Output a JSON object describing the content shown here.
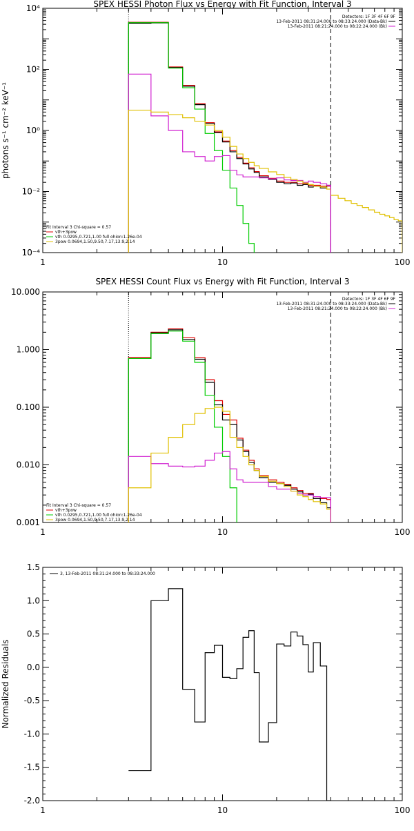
{
  "chart_data": [
    {
      "type": "line",
      "title": "SPEX HESSI Photon Flux vs Energy with Fit Function, Interval 3",
      "xlabel": "",
      "ylabel": "photons s⁻¹ cm⁻² keV⁻¹",
      "x_scale": "log",
      "y_scale": "log",
      "xlim": [
        1,
        100
      ],
      "ylim": [
        0.0001,
        10000
      ],
      "x_ticks": [
        {
          "value": 1,
          "label": "1"
        },
        {
          "value": 10,
          "label": "10"
        },
        {
          "value": 100,
          "label": "100"
        }
      ],
      "y_ticks": [
        {
          "value": 0.0001,
          "label": "10⁻⁴"
        },
        {
          "value": 0.01,
          "label": "10⁻²"
        },
        {
          "value": 1,
          "label": "10⁰"
        },
        {
          "value": 100,
          "label": "10²"
        },
        {
          "value": 10000,
          "label": "10⁴"
        }
      ],
      "legend_top_right": [
        {
          "text": "Detectors: 1F 3F 4F 6F 9F"
        },
        {
          "text": "13-Feb-2011 08:31:24.000 to 08:33:24.000 (Data-Bk)",
          "color": "#000000"
        },
        {
          "text": "13-Feb-2011 08:21:24.000 to 08:22:24.000 (Bk)",
          "color": "#d020d0"
        }
      ],
      "legend_bottom_left": [
        {
          "text": "Fit Interval  3    Chi-square = 0.57"
        },
        {
          "text": "vth+3pow",
          "color": "#e00000"
        },
        {
          "text": "vth 0.0295,0.721,1.00  full ohion:1.26e-04",
          "color": "#00cc00"
        },
        {
          "text": "3pow 0.0694,1.50,9.50,7.17,13.9,2.14",
          "color": "#e0c000"
        }
      ],
      "vlines": [
        {
          "x": 3.0,
          "style": "dotted",
          "color": "#000000"
        },
        {
          "x": 40.0,
          "style": "dashed",
          "color": "#000000"
        }
      ],
      "series": [
        {
          "color": "#e00000",
          "edges": [
            3,
            4,
            5,
            6,
            7,
            8,
            9,
            10,
            11,
            12,
            13,
            14,
            15,
            16,
            18,
            20,
            22,
            24,
            26,
            28,
            30,
            32,
            35,
            38,
            40
          ],
          "values": [
            3500,
            3500,
            120,
            30,
            7.5,
            1.8,
            0.9,
            0.45,
            0.22,
            0.13,
            0.085,
            0.06,
            0.045,
            0.033,
            0.027,
            0.022,
            0.02,
            0.02,
            0.018,
            0.018,
            0.016,
            0.016,
            0.015,
            0.015
          ]
        },
        {
          "color": "#000000",
          "edges": [
            3,
            4,
            5,
            6,
            7,
            8,
            9,
            10,
            11,
            12,
            13,
            14,
            15,
            16,
            18,
            20,
            22,
            24,
            26,
            28,
            30,
            32,
            35,
            38,
            40
          ],
          "values": [
            3200,
            3300,
            115,
            28,
            7,
            1.7,
            0.85,
            0.42,
            0.2,
            0.12,
            0.08,
            0.055,
            0.042,
            0.03,
            0.025,
            0.02,
            0.018,
            0.019,
            0.016,
            0.017,
            0.014,
            0.015,
            0.013,
            0.016
          ]
        },
        {
          "color": "#00cc00",
          "edges": [
            3,
            4,
            5,
            6,
            7,
            8,
            9,
            10,
            11,
            12,
            13,
            14,
            15
          ],
          "values": [
            3400,
            3400,
            110,
            25,
            5,
            0.8,
            0.22,
            0.05,
            0.013,
            0.0035,
            0.0009,
            0.0002
          ]
        },
        {
          "color": "#d020d0",
          "edges": [
            3,
            4,
            5,
            6,
            7,
            8,
            9,
            10,
            11,
            12,
            13,
            14,
            15,
            16,
            18,
            20,
            22,
            24,
            26,
            28,
            30,
            32,
            35,
            38,
            40
          ],
          "values": [
            70,
            3,
            1.0,
            0.2,
            0.14,
            0.1,
            0.14,
            0.15,
            0.05,
            0.035,
            0.03,
            0.03,
            0.03,
            0.028,
            0.026,
            0.028,
            0.024,
            0.023,
            0.023,
            0.02,
            0.022,
            0.02,
            0.018,
            0.016
          ]
        },
        {
          "color": "#e0c000",
          "edges": [
            3,
            4,
            5,
            6,
            7,
            8,
            9,
            10,
            11,
            12,
            13,
            14,
            15,
            16,
            18,
            20,
            22,
            24,
            26,
            28,
            30,
            32,
            35,
            38,
            40,
            44,
            48,
            52,
            56,
            60,
            65,
            70,
            75,
            80,
            85,
            90,
            95,
            100
          ],
          "values": [
            4.6,
            4.0,
            3.3,
            2.6,
            2.0,
            1.5,
            1.0,
            0.6,
            0.3,
            0.17,
            0.12,
            0.09,
            0.07,
            0.057,
            0.044,
            0.036,
            0.029,
            0.025,
            0.022,
            0.019,
            0.017,
            0.015,
            0.014,
            0.012,
            0.0075,
            0.006,
            0.005,
            0.0041,
            0.0035,
            0.003,
            0.0025,
            0.0021,
            0.0018,
            0.0016,
            0.0014,
            0.0012,
            0.0011
          ]
        },
        {
          "color": "#d020d0",
          "segments": [
            [
              40,
              0.016,
              40,
              0.0001
            ]
          ]
        }
      ]
    },
    {
      "type": "line",
      "title": "SPEX HESSI Count Flux vs Energy with Fit Function, Interval 3",
      "xlabel": "",
      "ylabel": "",
      "x_scale": "log",
      "y_scale": "log",
      "xlim": [
        1,
        100
      ],
      "ylim": [
        0.001,
        10
      ],
      "x_ticks": [
        {
          "value": 1,
          "label": "1"
        },
        {
          "value": 10,
          "label": "10"
        },
        {
          "value": 100,
          "label": "100"
        }
      ],
      "y_ticks": [
        {
          "value": 0.001,
          "label": "0.001"
        },
        {
          "value": 0.01,
          "label": "0.010"
        },
        {
          "value": 0.1,
          "label": "0.100"
        },
        {
          "value": 1,
          "label": "1.000"
        },
        {
          "value": 10,
          "label": "10.000"
        }
      ],
      "legend_top_right": [
        {
          "text": "Detectors: 1F 3F 4F 6F 9F"
        },
        {
          "text": "13-Feb-2011 08:31:24.000 to 08:33:24.000 (Data-Bk)",
          "color": "#000000"
        },
        {
          "text": "13-Feb-2011 08:21:24.000 to 08:22:24.000 (Bk)",
          "color": "#d020d0"
        }
      ],
      "legend_bottom_left": [
        {
          "text": "Fit Interval  3    Chi-square = 0.57"
        },
        {
          "text": "vth+3pow",
          "color": "#e00000"
        },
        {
          "text": "vth 0.0295,0.721,1.00  full ohion:1.26e-04",
          "color": "#00cc00"
        },
        {
          "text": "3pow 0.0694,1.50,9.50,7.17,13.9,2.14",
          "color": "#e0c000"
        }
      ],
      "vlines": [
        {
          "x": 3.0,
          "style": "dotted",
          "color": "#000000"
        },
        {
          "x": 40.0,
          "style": "dashed",
          "color": "#000000"
        }
      ],
      "series": [
        {
          "color": "#e00000",
          "edges": [
            3,
            4,
            5,
            6,
            7,
            8,
            9,
            10,
            11,
            12,
            13,
            14,
            15,
            16,
            18,
            20,
            22,
            24,
            26,
            28,
            30,
            32,
            35,
            38,
            40
          ],
          "values": [
            0.73,
            2.0,
            2.3,
            1.6,
            0.72,
            0.3,
            0.13,
            0.075,
            0.06,
            0.029,
            0.018,
            0.012,
            0.0085,
            0.0065,
            0.0055,
            0.005,
            0.0046,
            0.004,
            0.0036,
            0.0032,
            0.0032,
            0.0028,
            0.0026,
            0.0025
          ]
        },
        {
          "color": "#000000",
          "edges": [
            3,
            4,
            5,
            6,
            7,
            8,
            9,
            10,
            11,
            12,
            13,
            14,
            15,
            16,
            18,
            20,
            22,
            24,
            26,
            28,
            30,
            32,
            35,
            38,
            40
          ],
          "values": [
            0.7,
            1.95,
            2.2,
            1.5,
            0.68,
            0.27,
            0.11,
            0.06,
            0.05,
            0.027,
            0.017,
            0.011,
            0.008,
            0.006,
            0.005,
            0.0047,
            0.0044,
            0.0038,
            0.0034,
            0.003,
            0.0031,
            0.0026,
            0.0022,
            0.0018
          ]
        },
        {
          "color": "#00cc00",
          "edges": [
            3,
            4,
            5,
            6,
            7,
            8,
            9,
            10,
            11,
            12
          ],
          "values": [
            0.7,
            1.9,
            2.1,
            1.4,
            0.6,
            0.16,
            0.045,
            0.014,
            0.004
          ]
        },
        {
          "color": "#d020d0",
          "edges": [
            3,
            4,
            5,
            6,
            7,
            8,
            9,
            10,
            11,
            12,
            13,
            14,
            15,
            16,
            18,
            20,
            22,
            24,
            26,
            28,
            30,
            32,
            35,
            38,
            40
          ],
          "values": [
            0.014,
            0.0105,
            0.0095,
            0.0092,
            0.0095,
            0.012,
            0.016,
            0.017,
            0.0085,
            0.0055,
            0.005,
            0.005,
            0.005,
            0.005,
            0.0042,
            0.0038,
            0.0038,
            0.0035,
            0.0032,
            0.003,
            0.003,
            0.0028,
            0.0027,
            0.0027
          ]
        },
        {
          "color": "#e0c000",
          "edges": [
            3,
            4,
            5,
            6,
            7,
            8,
            9,
            10,
            11,
            12,
            13,
            14,
            15,
            16,
            18,
            20,
            22,
            24,
            26,
            28,
            30,
            32,
            35,
            38,
            40
          ],
          "values": [
            0.004,
            0.016,
            0.03,
            0.05,
            0.078,
            0.095,
            0.1,
            0.085,
            0.03,
            0.02,
            0.014,
            0.01,
            0.008,
            0.0063,
            0.0052,
            0.0047,
            0.0042,
            0.0035,
            0.003,
            0.0028,
            0.0025,
            0.0023,
            0.0021,
            0.0017
          ]
        },
        {
          "color": "#d020d0",
          "segments": [
            [
              40,
              0.0027,
              40,
              0.001
            ]
          ]
        }
      ]
    },
    {
      "type": "line",
      "title": "",
      "xlabel": "",
      "ylabel": "Normalized Residuals",
      "x_scale": "log",
      "y_scale": "linear",
      "xlim": [
        1,
        100
      ],
      "ylim": [
        -2.0,
        1.5
      ],
      "x_ticks": [
        {
          "value": 1,
          "label": "1"
        },
        {
          "value": 10,
          "label": "10"
        },
        {
          "value": 100,
          "label": "100"
        }
      ],
      "y_ticks": [
        {
          "value": -2.0,
          "label": "-2.0"
        },
        {
          "value": -1.5,
          "label": "-1.5"
        },
        {
          "value": -1.0,
          "label": "-1.0"
        },
        {
          "value": -0.5,
          "label": "-0.5"
        },
        {
          "value": 0.0,
          "label": "0.0"
        },
        {
          "value": 0.5,
          "label": "0.5"
        },
        {
          "value": 1.0,
          "label": "1.0"
        },
        {
          "value": 1.5,
          "label": "1.5"
        }
      ],
      "legend_top_left": [
        {
          "text": "3, 13-Feb-2011 08:31:24.000 to 08:33:24.000",
          "color": "#000000"
        }
      ],
      "series": [
        {
          "color": "#000000",
          "edges": [
            3,
            4,
            5,
            6,
            7,
            8,
            9,
            10,
            11,
            12,
            13,
            14,
            15,
            16,
            18,
            20,
            22,
            24,
            26,
            28,
            30,
            32,
            35,
            38,
            40
          ],
          "values": [
            -1.55,
            1.0,
            1.18,
            -0.33,
            -0.82,
            0.22,
            0.33,
            -0.15,
            -0.17,
            -0.02,
            0.45,
            0.55,
            -0.08,
            -1.12,
            -0.83,
            0.35,
            0.32,
            0.53,
            0.47,
            0.34,
            -0.07,
            0.37,
            0.02,
            -2.0
          ]
        }
      ]
    }
  ]
}
